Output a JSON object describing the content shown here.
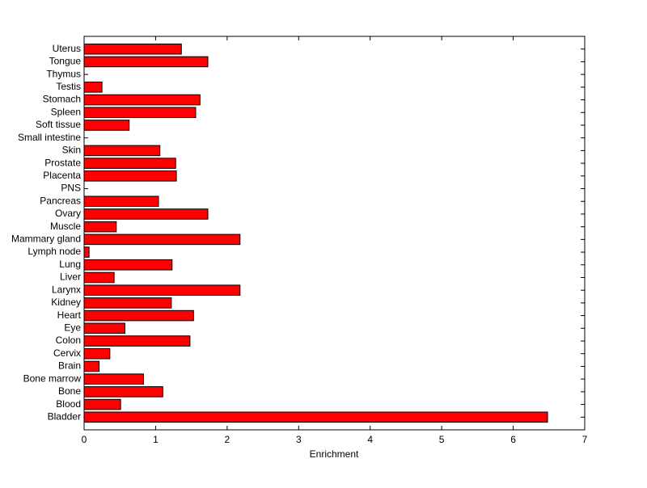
{
  "chart_data": {
    "type": "barh",
    "xlabel": "Enrichment",
    "categories": [
      "Bladder",
      "Blood",
      "Bone",
      "Bone marrow",
      "Brain",
      "Cervix",
      "Colon",
      "Eye",
      "Heart",
      "Kidney",
      "Larynx",
      "Liver",
      "Lung",
      "Lymph node",
      "Mammary gland",
      "Muscle",
      "Ovary",
      "Pancreas",
      "PNS",
      "Placenta",
      "Prostate",
      "Skin",
      "Small intestine",
      "Soft tissue",
      "Spleen",
      "Stomach",
      "Testis",
      "Thymus",
      "Tongue",
      "Uterus"
    ],
    "values": [
      6.48,
      0.51,
      1.1,
      0.83,
      0.21,
      0.36,
      1.48,
      0.57,
      1.53,
      1.22,
      2.18,
      0.42,
      1.23,
      0.07,
      2.18,
      0.45,
      1.73,
      1.04,
      0,
      1.29,
      1.28,
      1.06,
      0,
      0.63,
      1.56,
      1.62,
      0.25,
      0,
      1.73,
      1.36
    ],
    "color": "#ff0000",
    "xlim": [
      0,
      7
    ],
    "xticks": [
      0,
      1,
      2,
      3,
      4,
      5,
      6,
      7
    ],
    "grid": false
  }
}
